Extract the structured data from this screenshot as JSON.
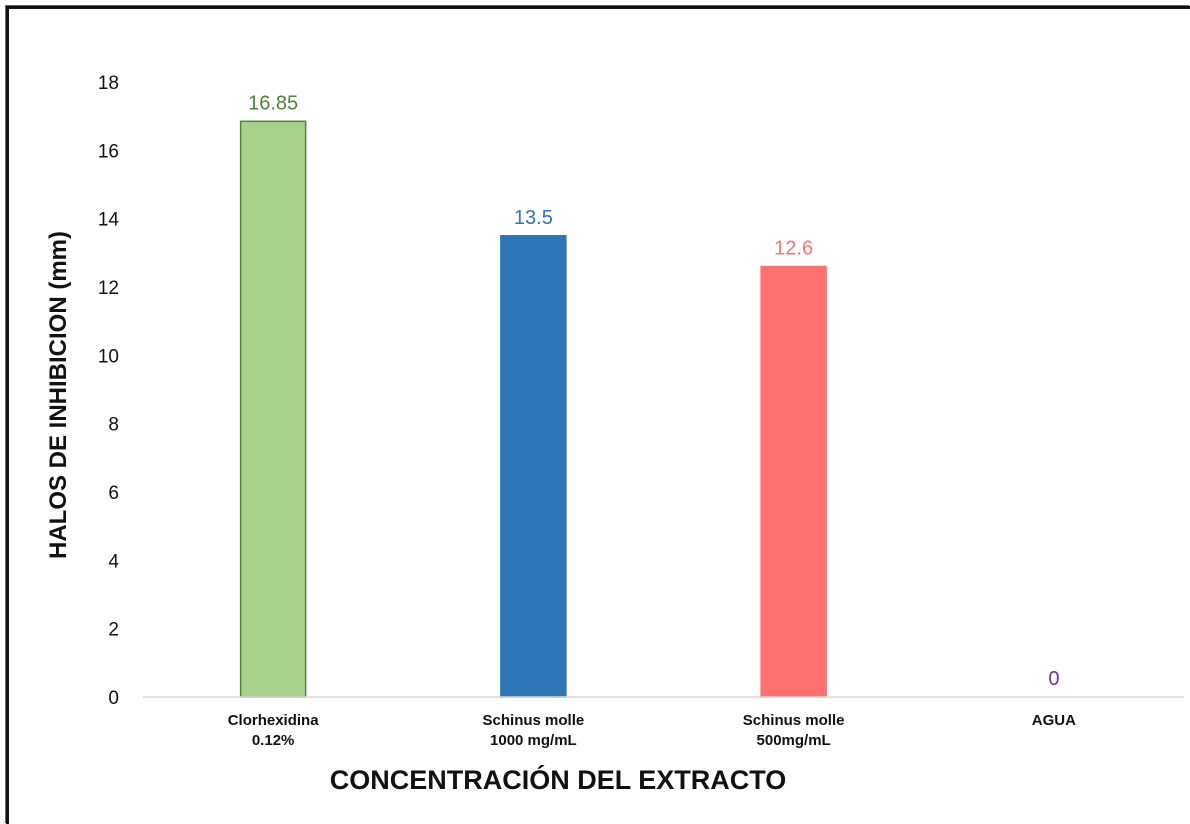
{
  "chart_data": {
    "type": "bar",
    "xlabel": "CONCENTRACIÓN DEL EXTRACTO",
    "ylabel": "HALOS DE INHIBICION (mm)",
    "ylim": [
      0,
      18
    ],
    "yticks": [
      0,
      2,
      4,
      6,
      8,
      10,
      12,
      14,
      16,
      18
    ],
    "grid": false,
    "categories": [
      [
        "Clorhexidina",
        "0.12%"
      ],
      [
        "Schinus molle",
        "1000 mg/mL"
      ],
      [
        "Schinus molle",
        "500mg/mL"
      ],
      [
        "AGUA"
      ]
    ],
    "values": [
      16.85,
      13.5,
      12.6,
      0
    ],
    "data_labels": [
      "16.85",
      "13.5",
      "12.6",
      "0"
    ],
    "colors": {
      "fill": [
        "#a9d18e",
        "#2e75b6",
        "#ff7171",
        "#7030a0"
      ],
      "stroke": [
        "#548235",
        "#2e75b6",
        "#ff7171",
        "#7030a0"
      ],
      "label": [
        "#548235",
        "#2e75b6",
        "#ff7171",
        "#7030a0"
      ]
    }
  }
}
